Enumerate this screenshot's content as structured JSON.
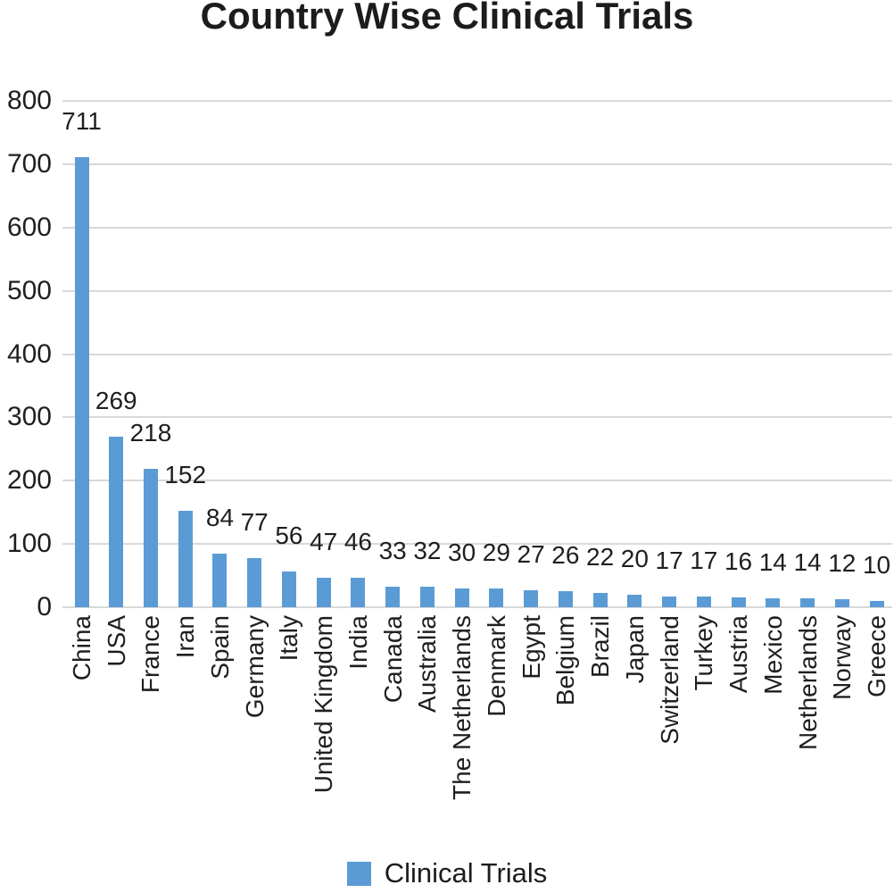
{
  "title": "Country Wise Clinical Trials",
  "legend": {
    "label": "Clinical Trials",
    "swatch_color": "#5B9BD5"
  },
  "colors": {
    "bar": "#5B9BD5",
    "gridline": "#D9D9D9",
    "text": "#1F1F1F",
    "background": "#FFFFFF"
  },
  "y_axis": {
    "ticks": [
      800,
      700,
      600,
      500,
      400,
      300,
      200,
      100,
      0
    ],
    "min": 0,
    "max": 800,
    "step": 100
  },
  "chart_data": {
    "type": "bar",
    "title": "Country Wise Clinical Trials",
    "series_name": "Clinical Trials",
    "categories": [
      "China",
      "USA",
      "France",
      "Iran",
      "Spain",
      "Germany",
      "Italy",
      "United Kingdom",
      "India",
      "Canada",
      "Australia",
      "The Netherlands",
      "Denmark",
      "Egypt",
      "Belgium",
      "Brazil",
      "Japan",
      "Switzerland",
      "Turkey",
      "Austria",
      "Mexico",
      "Netherlands",
      "Norway",
      "Greece"
    ],
    "values": [
      711,
      269,
      218,
      152,
      84,
      77,
      56,
      47,
      46,
      33,
      32,
      30,
      29,
      27,
      26,
      22,
      20,
      17,
      17,
      16,
      14,
      14,
      12,
      10
    ],
    "xlabel": "",
    "ylabel": "",
    "ylim": [
      0,
      800
    ],
    "ytick_step": 100,
    "grid": true,
    "data_labels": true,
    "legend_position": "bottom",
    "bar_color": "#5B9BD5"
  }
}
